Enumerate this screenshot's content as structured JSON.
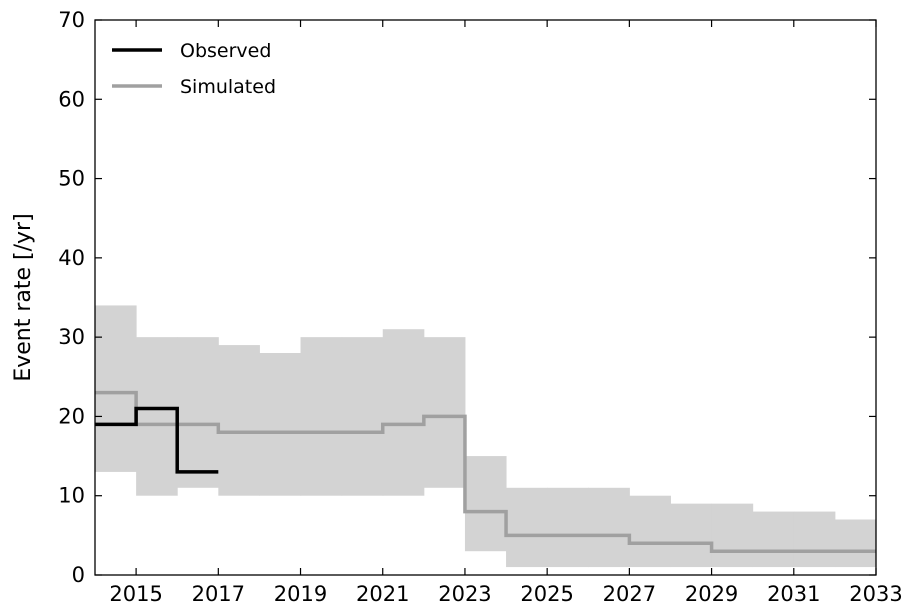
{
  "chart_data": {
    "type": "line",
    "title": "",
    "xlabel": "",
    "ylabel": "Event rate [/yr]",
    "xlim": [
      2014,
      2033
    ],
    "ylim": [
      0,
      70
    ],
    "xticks": [
      "2015",
      "2017",
      "2019",
      "2021",
      "2023",
      "2025",
      "2027",
      "2029",
      "2031",
      "2033"
    ],
    "yticks": [
      "0",
      "10",
      "20",
      "30",
      "40",
      "50",
      "60",
      "70"
    ],
    "grid": false,
    "legend_position": "top-left",
    "step": "post",
    "series": [
      {
        "name": "Observed",
        "color": "#000000",
        "x": [
          2014,
          2015,
          2016,
          2017
        ],
        "y": [
          19,
          21,
          13,
          13
        ]
      },
      {
        "name": "Simulated",
        "color": "#a0a0a0",
        "x": [
          2014,
          2015,
          2016,
          2017,
          2018,
          2019,
          2020,
          2021,
          2022,
          2023,
          2024,
          2025,
          2026,
          2027,
          2028,
          2029,
          2030,
          2031,
          2032,
          2033
        ],
        "y": [
          23,
          19,
          19,
          18,
          18,
          18,
          18,
          19,
          20,
          8,
          5,
          5,
          5,
          4,
          4,
          3,
          3,
          3,
          3,
          3
        ]
      }
    ],
    "band": {
      "color": "#d3d3d3",
      "x": [
        2014,
        2015,
        2016,
        2017,
        2018,
        2019,
        2020,
        2021,
        2022,
        2023,
        2024,
        2025,
        2026,
        2027,
        2028,
        2029,
        2030,
        2031,
        2032,
        2033
      ],
      "lower": [
        13,
        10,
        11,
        10,
        10,
        10,
        10,
        10,
        11,
        3,
        1,
        1,
        1,
        1,
        1,
        1,
        1,
        1,
        1,
        1
      ],
      "upper": [
        34,
        30,
        30,
        29,
        28,
        30,
        30,
        31,
        30,
        15,
        11,
        11,
        11,
        10,
        9,
        9,
        8,
        8,
        7,
        7
      ]
    }
  }
}
